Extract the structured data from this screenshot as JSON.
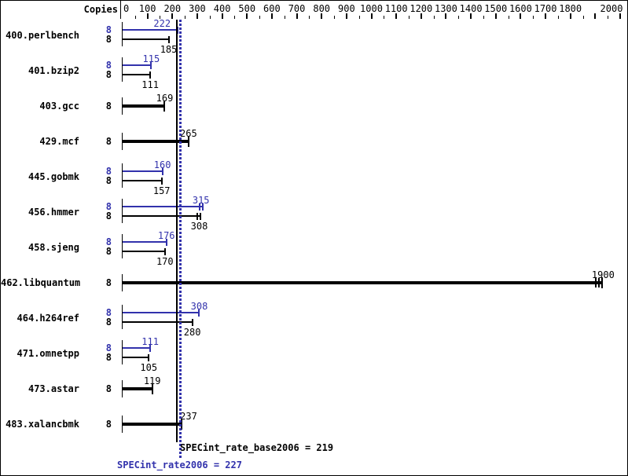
{
  "header": {
    "copies_label": "Copies"
  },
  "footer": {
    "base_label": "SPECint_rate_base2006 = 219",
    "peak_label": "SPECint_rate2006 = 227"
  },
  "colors": {
    "peak_blue": "#3232ac",
    "base_black": "#000000"
  },
  "chart_data": {
    "type": "bar",
    "orientation": "horizontal",
    "title": "",
    "xlabel": "",
    "ylabel": "Copies",
    "axis": {
      "min": 0,
      "max": 2000,
      "minor_step": 50,
      "major_step": 100,
      "labels": [
        0,
        100,
        200,
        300,
        400,
        500,
        600,
        700,
        800,
        900,
        1000,
        1100,
        1200,
        1300,
        1400,
        1500,
        1600,
        1700,
        1800,
        2000
      ]
    },
    "series_legend": [
      "peak (blue)",
      "base (black)"
    ],
    "benchmarks": [
      {
        "name": "400.perlbench",
        "copies": [
          "8",
          "8"
        ],
        "peak": 222,
        "base": 185
      },
      {
        "name": "401.bzip2",
        "copies": [
          "8",
          "8"
        ],
        "peak": 115,
        "base": 111
      },
      {
        "name": "403.gcc",
        "copies": [
          "8"
        ],
        "base": 169
      },
      {
        "name": "429.mcf",
        "copies": [
          "8"
        ],
        "base": 265
      },
      {
        "name": "445.gobmk",
        "copies": [
          "8",
          "8"
        ],
        "peak": 160,
        "base": 157
      },
      {
        "name": "456.hmmer",
        "copies": [
          "8",
          "8"
        ],
        "peak": 315,
        "base": 308,
        "run_marks": true
      },
      {
        "name": "458.sjeng",
        "copies": [
          "8",
          "8"
        ],
        "peak": 176,
        "base": 170
      },
      {
        "name": "462.libquantum",
        "copies": [
          "8"
        ],
        "base": 1900,
        "run_marks": true
      },
      {
        "name": "464.h264ref",
        "copies": [
          "8",
          "8"
        ],
        "peak": 308,
        "base": 280
      },
      {
        "name": "471.omnetpp",
        "copies": [
          "8",
          "8"
        ],
        "peak": 111,
        "base": 105
      },
      {
        "name": "473.astar",
        "copies": [
          "8"
        ],
        "base": 119
      },
      {
        "name": "483.xalancbmk",
        "copies": [
          "8"
        ],
        "base": 237
      }
    ],
    "reference_lines": [
      {
        "name": "SPECint_rate_base2006",
        "value": 219,
        "style": "solid",
        "color": "#000000"
      },
      {
        "name": "SPECint_rate2006",
        "value": 227,
        "style": "dotted",
        "color": "#3232ac"
      }
    ]
  }
}
